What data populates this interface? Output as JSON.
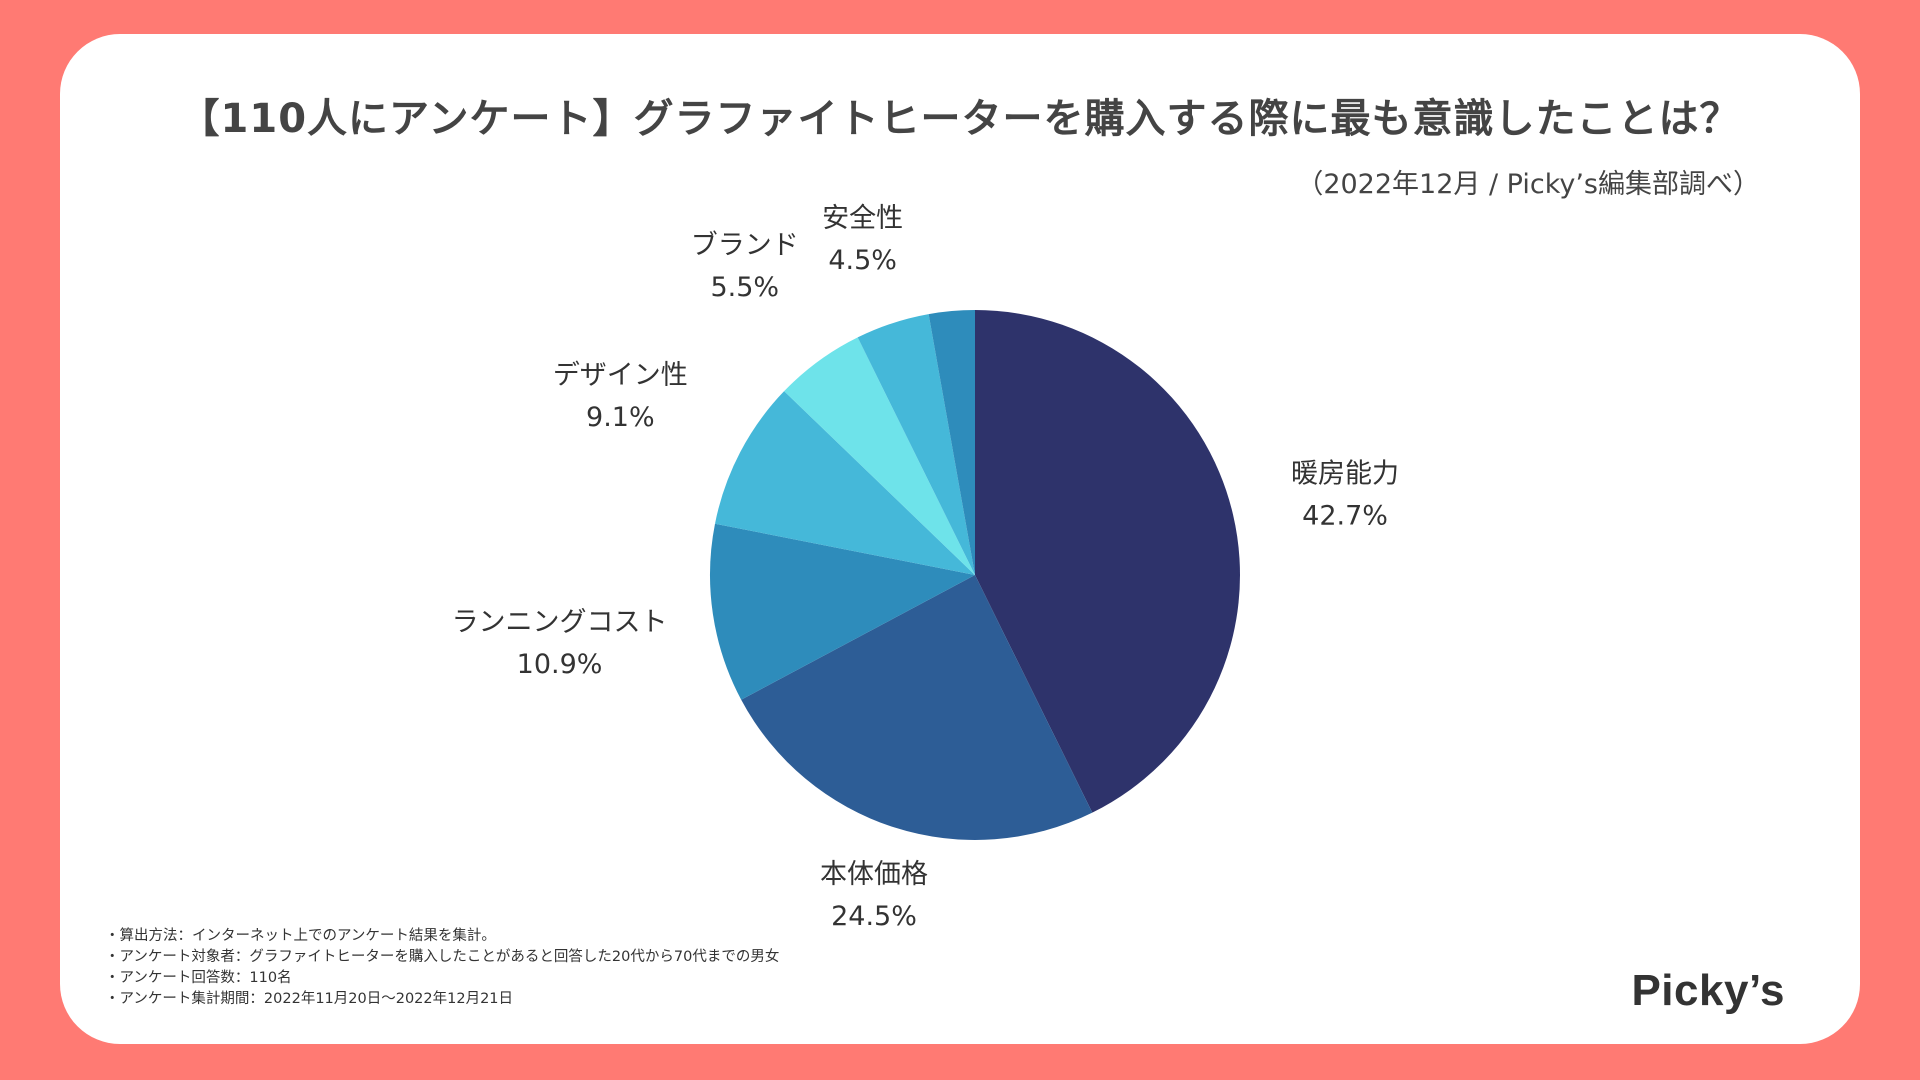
{
  "header": {
    "title": "【110人にアンケート】グラファイトヒーターを購入する際に最も意識したことは？",
    "source": "（2022年12月 / Picky’s編集部調べ）"
  },
  "chart_data": {
    "type": "pie",
    "unit": "%",
    "slices": [
      {
        "label": "暖房能力",
        "value": 42.7,
        "value_label": "42.7%",
        "color": "#2e336b"
      },
      {
        "label": "本体価格",
        "value": 24.5,
        "value_label": "24.5%",
        "color": "#2d5d96"
      },
      {
        "label": "ランニングコスト",
        "value": 10.9,
        "value_label": "10.9%",
        "color": "#2e8cbb"
      },
      {
        "label": "デザイン性",
        "value": 9.1,
        "value_label": "9.1%",
        "color": "#45b8d9"
      },
      {
        "label": "ブランド",
        "value": 5.5,
        "value_label": "5.5%",
        "color": "#6ee3ea"
      },
      {
        "label": "安全性",
        "value": 4.5,
        "value_label": "4.5%",
        "color": "#45b8d9"
      },
      {
        "label": "",
        "value": 2.8,
        "value_label": "",
        "color": "#2e8cbb"
      }
    ]
  },
  "notes": [
    "・算出方法：インターネット上でのアンケート結果を集計。",
    "・アンケート対象者：グラファイトヒーターを購入したことがあると回答した20代から70代までの男女",
    "・アンケート回答数：110名",
    "・アンケート集計期間：2022年11月20日〜2022年12月21日"
  ],
  "brand": {
    "logo": "Picky’s"
  }
}
